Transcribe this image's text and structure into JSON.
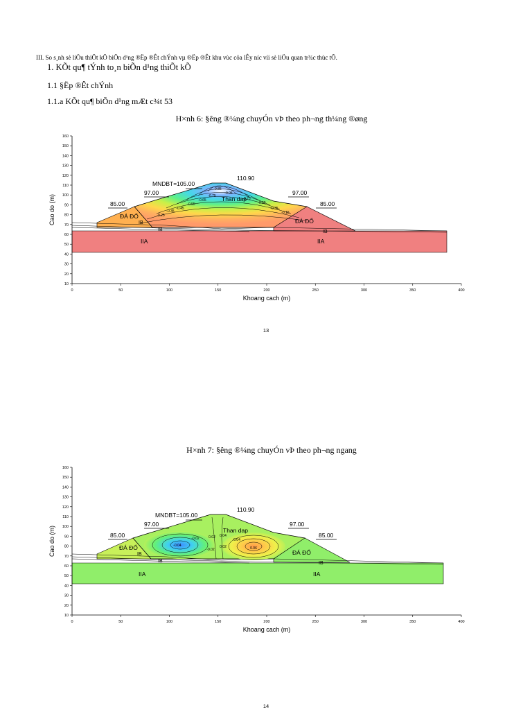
{
  "section_header": "III. So s¸nh sè liÖu thiÕt kÕ biÕn d¹ng ®Ëp ®Êt chÝnh vµ ®Ëp ®Êt khu vùc cöa lÊy n­íc víi sè liÖu quan tr¾c thùc tÕ.",
  "heading_1": "1.  KÕt qu¶ tÝnh to¸n biÕn d¹ng thiÕt kÕ",
  "heading_1_1": "1.1  §Ëp ®Êt chÝnh",
  "heading_1_1_a": "1.1.a KÕt qu¶ biÕn d¹ng mÆt c¾t 53",
  "page_1_number": "13",
  "page_2_number": "14",
  "figures": [
    {
      "caption": "H×nh 6:  §­êng ®¼ng chuyÓn vÞ theo ph­¬ng th¼ng ®øng",
      "xlabel": "Khoang cach (m)",
      "ylabel": "Cao do (m)",
      "x_ticks": [
        "0",
        "50",
        "100",
        "150",
        "200",
        "250",
        "300",
        "350",
        "400"
      ],
      "y_ticks": [
        "10",
        "20",
        "30",
        "40",
        "50",
        "60",
        "70",
        "80",
        "90",
        "100",
        "110",
        "120",
        "130",
        "140",
        "150",
        "160"
      ],
      "labels": {
        "crest": "110.90",
        "mndbt": "MNDBT=105.00",
        "berm_left": "97.00",
        "berm_right": "97.00",
        "toe_left": "85.00",
        "toe_right": "85.00",
        "core": "Than dap",
        "rock_left": "ĐÁ ĐỔ",
        "rock_right": "ĐÁ ĐỔ",
        "ib_1": "IB",
        "ib_2": "IB",
        "ib_3": "IB",
        "iia_left": "IIA",
        "iia_right": "IIA"
      },
      "contour_values": [
        "-0.85",
        "-0.75",
        "-0.65",
        "-0.55",
        "-0.45",
        "-0.35",
        "-0.25",
        "-0.95",
        "-0.75",
        "-0.55",
        "-0.35",
        "-0.15"
      ],
      "foundation_color": "#f08080"
    },
    {
      "caption": "H×nh 7: §­êng ®¼ng chuyÓn vÞ theo ph­¬ng ngang",
      "xlabel": "Khoang cach (m)",
      "ylabel": "Cao do (m)",
      "x_ticks": [
        "0",
        "50",
        "100",
        "150",
        "200",
        "250",
        "300",
        "350",
        "400"
      ],
      "y_ticks": [
        "10",
        "20",
        "30",
        "40",
        "50",
        "60",
        "70",
        "80",
        "90",
        "100",
        "110",
        "120",
        "130",
        "140",
        "150",
        "160"
      ],
      "labels": {
        "crest": "110.90",
        "mndbt": "MNDBT=105.00",
        "berm_left": "97.00",
        "berm_right": "97.00",
        "toe_left": "85.00",
        "toe_right": "85.00",
        "core": "Than dap",
        "rock_left": "ĐÁ ĐỔ",
        "rock_right": "ĐÁ ĐỔ",
        "ib_1": "IB",
        "ib_2": "IB",
        "ib_3": "IB",
        "iia_left": "IIA",
        "iia_right": "IIA"
      },
      "contour_values": [
        "-0.04",
        "-0.02",
        "0.02",
        "0.04",
        "0.04",
        "0.06",
        "0.02",
        "-0.02"
      ],
      "foundation_color": "#90ee6a"
    }
  ]
}
